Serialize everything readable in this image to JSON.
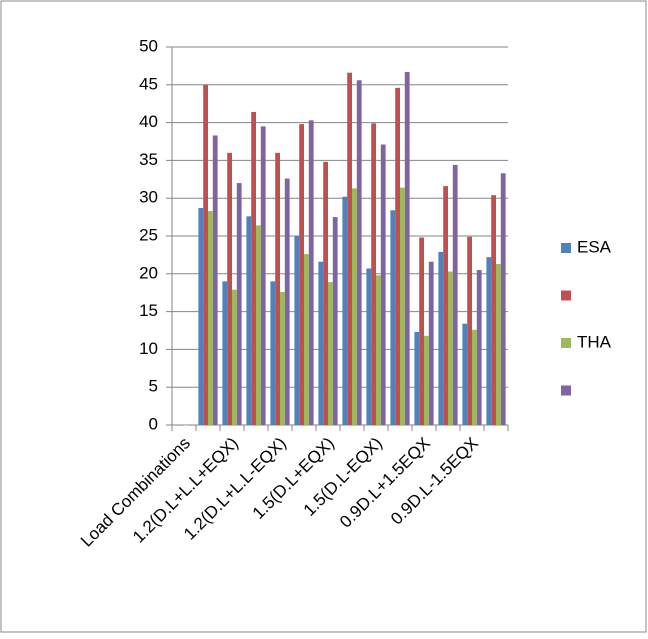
{
  "chart_data": {
    "type": "bar",
    "categories": [
      "Load Combinations",
      null,
      "1.2(D.L+L.L+EQX)",
      null,
      "1.2(D.L+L.L-EQX)",
      null,
      "1.5(D.L+EQX)",
      null,
      "1.5(D.L-EQX)",
      null,
      "0.9D.L+1.5EQX",
      null,
      "0.9D.L-1.5EQX",
      null
    ],
    "series": [
      {
        "name": "ESA",
        "color": "#4f81bd",
        "values": [
          0,
          28.7,
          19,
          27.6,
          19,
          25,
          21.6,
          30.2,
          20.7,
          28.4,
          12.3,
          22.9,
          13.4,
          22.2
        ]
      },
      {
        "color": "#c0504d",
        "values": [
          0,
          45,
          36,
          41.4,
          36,
          39.8,
          34.8,
          46.6,
          39.9,
          44.6,
          24.8,
          31.6,
          24.9,
          30.4
        ]
      },
      {
        "name": "THA",
        "color": "#9bbb59",
        "values": [
          0,
          28.3,
          17.9,
          26.4,
          17.6,
          22.6,
          18.9,
          31.3,
          19.8,
          31.4,
          11.8,
          20.3,
          12.6,
          21.3
        ]
      },
      {
        "color": "#8064a2",
        "values": [
          0,
          38.3,
          32,
          39.5,
          32.6,
          40.3,
          27.5,
          45.6,
          37.1,
          46.7,
          21.6,
          34.4,
          20.5,
          33.3
        ]
      }
    ],
    "ylim": [
      0,
      50
    ],
    "yticks": [
      0,
      5,
      10,
      15,
      20,
      25,
      30,
      35,
      40,
      45,
      50
    ],
    "grid": true,
    "legend": "right"
  }
}
